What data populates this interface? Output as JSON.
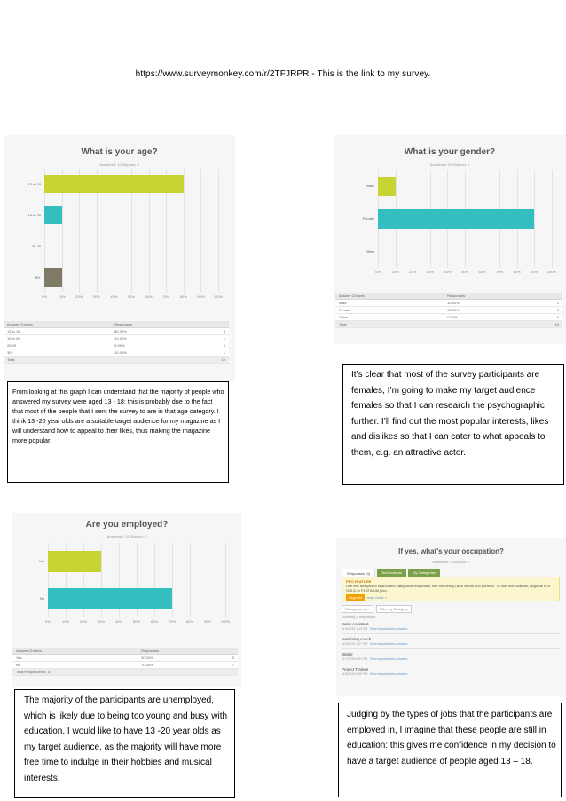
{
  "header": {
    "link_url": "https://www.surveymonkey.com/r/2TFJRPR",
    "link_suffix": "- This is the link to my survey."
  },
  "colors": {
    "green": "#c8d433",
    "teal": "#33bfbf",
    "grey": "#7f7a66"
  },
  "charts": [
    {
      "id": "age",
      "title": "What is your age?",
      "subtitle": "Answered: 10    Skipped: 0",
      "ticks": [
        "0%",
        "10%",
        "20%",
        "30%",
        "40%",
        "50%",
        "60%",
        "70%",
        "80%",
        "90%",
        "100%"
      ],
      "categories": [
        "13 to 18",
        "19 to 25",
        "26-29",
        "30+"
      ],
      "values": [
        80,
        10,
        0,
        10
      ],
      "colors": [
        "#c8d433",
        "#33bfbf",
        "#c8d433",
        "#7f7a66"
      ],
      "table": {
        "head": [
          "Answer Choices",
          "Responses",
          ""
        ],
        "rows": [
          [
            "13 to 18",
            "80.00%",
            "8"
          ],
          [
            "19 to 25",
            "10.00%",
            "1"
          ],
          [
            "26-29",
            "0.00%",
            "0"
          ],
          [
            "30+",
            "10.00%",
            "1"
          ]
        ],
        "total": [
          "Total",
          "",
          "10"
        ]
      }
    },
    {
      "id": "gender",
      "title": "What is your gender?",
      "subtitle": "Answered: 10    Skipped: 0",
      "ticks": [
        "0%",
        "10%",
        "20%",
        "30%",
        "40%",
        "50%",
        "60%",
        "70%",
        "80%",
        "90%",
        "100%"
      ],
      "categories": [
        "Male",
        "Female",
        "Other"
      ],
      "values": [
        10,
        90,
        0
      ],
      "colors": [
        "#c8d433",
        "#33bfbf",
        "#c8d433"
      ],
      "table": {
        "head": [
          "Answer Choices",
          "Responses",
          ""
        ],
        "rows": [
          [
            "Male",
            "10.00%",
            "1"
          ],
          [
            "Female",
            "90.00%",
            "9"
          ],
          [
            "Other",
            "0.00%",
            "0"
          ]
        ],
        "total": [
          "Total",
          "",
          "10"
        ]
      }
    },
    {
      "id": "employed",
      "title": "Are you employed?",
      "subtitle": "Answered: 10    Skipped: 0",
      "ticks": [
        "0%",
        "10%",
        "20%",
        "30%",
        "40%",
        "50%",
        "60%",
        "70%",
        "80%",
        "90%",
        "100%"
      ],
      "categories": [
        "Yes",
        "No"
      ],
      "values": [
        30,
        70
      ],
      "colors": [
        "#c8d433",
        "#33bfbf"
      ],
      "table": {
        "head": [
          "Answer Choices",
          "Responses",
          ""
        ],
        "rows": [
          [
            "Yes",
            "30.00%",
            "3"
          ],
          [
            "No",
            "70.00%",
            "7"
          ]
        ],
        "total": [
          "Total Respondents: 10",
          "",
          ""
        ]
      }
    }
  ],
  "chart_data": [
    {
      "type": "bar",
      "title": "What is your age?",
      "categories": [
        "13 to 18",
        "19 to 25",
        "26-29",
        "30+"
      ],
      "values": [
        80,
        10,
        0,
        10
      ],
      "xlabel": "",
      "ylabel": "",
      "xlim": [
        0,
        100
      ]
    },
    {
      "type": "bar",
      "title": "What is your gender?",
      "categories": [
        "Male",
        "Female",
        "Other"
      ],
      "values": [
        10,
        90,
        0
      ],
      "xlabel": "",
      "ylabel": "",
      "xlim": [
        0,
        100
      ]
    },
    {
      "type": "bar",
      "title": "Are you employed?",
      "categories": [
        "Yes",
        "No"
      ],
      "values": [
        30,
        70
      ],
      "xlabel": "",
      "ylabel": "",
      "xlim": [
        0,
        100
      ]
    }
  ],
  "occupation": {
    "title": "If yes, what's your occupation?",
    "subtitle": "Answered: 4    Skipped: 7",
    "tabs": [
      "Responses (4)",
      "Text Analysis",
      "My Categories"
    ],
    "pro_title": "PRO FEATURE",
    "pro_text": "Use text analysis to search and categorize responses; see frequently-used words and phrases. To use Text Analysis, upgrade to a GOLD or PLATINUM plan.",
    "upgrade_label": "Upgrade",
    "learn_label": "Learn more »",
    "filter_categories": "Categorize as...",
    "filter_by": "Filter by Category",
    "showing": "Showing 4 responses",
    "rows": [
      {
        "answer": "Sales Assistant",
        "date": "11/9/2015 1:13 PM",
        "view": "View respondent's answers"
      },
      {
        "answer": "swimming coach",
        "date": "11/9/2015 1:07 PM",
        "view": "View respondent's answers"
      },
      {
        "answer": "Waiter",
        "date": "11/7/2015 8:31 PM",
        "view": "View respondent's answers"
      },
      {
        "answer": "Project Trainee",
        "date": "11/6/2015 6:36 PM",
        "view": "View respondent's answers"
      }
    ]
  },
  "notes": {
    "age": "From looking at this graph I can understand that the majority of people who answered my survey were aged 13 - 18: this is probably due to the fact that most of the people that I sent the survey to are in that age category. I think 13 -20 year olds are a suitable target audience for my magazine as I will understand how to appeal to their likes, thus making the magazine more popular.",
    "gender": "It’s clear that most of the survey participants are females, I’m going to make my target audience females so that I can research the psychographic further. I’ll find out the most popular interests, likes and dislikes so that I can cater to what appeals to them, e.g. an attractive actor.",
    "employed": "The majority of the participants are unemployed, which is likely due to being too young and busy with education. I would like to have 13 -20 year olds as my target audience, as the majority will have more free time to indulge in their hobbies and musical interests.",
    "occupation": "Judging by the types of jobs that the participants are employed in, I imagine that these people are still in education: this gives me confidence in my decision to have a target audience of people aged 13 – 18."
  }
}
